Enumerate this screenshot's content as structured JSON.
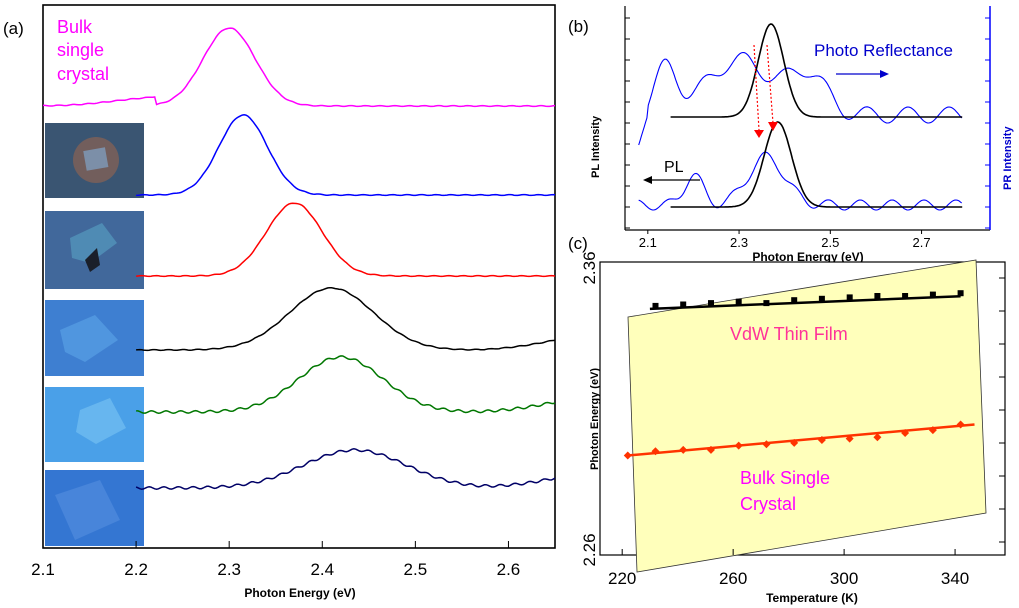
{
  "panel_labels": {
    "a": "(a)",
    "b": "(b)",
    "c": "(c)"
  },
  "chart_data": [
    {
      "panel": "a",
      "type": "line",
      "xlabel": "Photon Energy (eV)",
      "ylabel": "",
      "xlim": [
        2.1,
        2.65
      ],
      "xticks": [
        "2.1",
        "2.2",
        "2.3",
        "2.4",
        "2.5",
        "2.6"
      ],
      "annotation": [
        "Bulk",
        "single",
        "crystal"
      ],
      "series": [
        {
          "color": "#ff00ff",
          "peak": 2.3,
          "width": 0.028,
          "amp": 78,
          "x": [
            2.1,
            2.2,
            2.25,
            2.3,
            2.35,
            2.4,
            2.65
          ]
        },
        {
          "color": "#0000ff",
          "peak": 2.315,
          "width": 0.026,
          "amp": 80,
          "x": [
            2.2,
            2.25,
            2.315,
            2.38,
            2.65
          ]
        },
        {
          "color": "#ff0000",
          "peak": 2.37,
          "width": 0.03,
          "amp": 73,
          "x": [
            2.2,
            2.3,
            2.37,
            2.45,
            2.65
          ]
        },
        {
          "color": "#000000",
          "peak": 2.41,
          "width": 0.045,
          "amp": 62,
          "x": [
            2.2,
            2.3,
            2.41,
            2.5,
            2.65
          ]
        },
        {
          "color": "#007700",
          "peak": 2.42,
          "width": 0.045,
          "amp": 55,
          "x": [
            2.2,
            2.3,
            2.42,
            2.5,
            2.65
          ]
        },
        {
          "color": "#000066",
          "peak": 2.435,
          "width": 0.055,
          "amp": 38,
          "x": [
            2.2,
            2.3,
            2.435,
            2.55,
            2.65
          ]
        }
      ]
    },
    {
      "panel": "b",
      "type": "line",
      "xlabel": "Photon Energy (eV)",
      "ylabel_left": "PL Intensity",
      "ylabel_right": "PR Intensity",
      "xlim": [
        2.05,
        2.85
      ],
      "xticks": [
        "2.1",
        "2.3",
        "2.5",
        "2.7"
      ],
      "annotations": [
        "Photo Reflectance",
        "PL"
      ],
      "series": [
        {
          "name": "Photo Reflectance",
          "color": "#0000ff"
        },
        {
          "name": "PL",
          "color": "#000000"
        }
      ]
    },
    {
      "panel": "c",
      "type": "scatter",
      "xlabel": "Temperature (K)",
      "ylabel": "Photon Energy (eV)",
      "xlim": [
        212,
        358
      ],
      "ylim": [
        2.26,
        2.36
      ],
      "xticks": [
        "220",
        "260",
        "300",
        "340"
      ],
      "yticks": [
        "2.36",
        "2.26"
      ],
      "annotations": {
        "top": "VdW Thin Film",
        "bottom_line1": "Bulk Single",
        "bottom_line2": "Crystal"
      },
      "series": [
        {
          "name": "VdW Thin Film",
          "color": "#000000",
          "x": [
            232,
            242,
            252,
            262,
            272,
            282,
            292,
            302,
            312,
            322,
            332,
            342
          ],
          "y": [
            2.3455,
            2.346,
            2.3465,
            2.347,
            2.3465,
            2.3475,
            2.348,
            2.3485,
            2.349,
            2.349,
            2.3495,
            2.35
          ]
        },
        {
          "name": "Bulk Single Crystal",
          "color": "#ff3300",
          "x": [
            222,
            232,
            242,
            252,
            262,
            272,
            282,
            292,
            302,
            312,
            322,
            332,
            342
          ],
          "y": [
            2.2935,
            2.295,
            2.2955,
            2.2955,
            2.297,
            2.2975,
            2.298,
            2.299,
            2.2995,
            2.3,
            2.3015,
            2.3025,
            2.3045
          ]
        }
      ]
    }
  ]
}
